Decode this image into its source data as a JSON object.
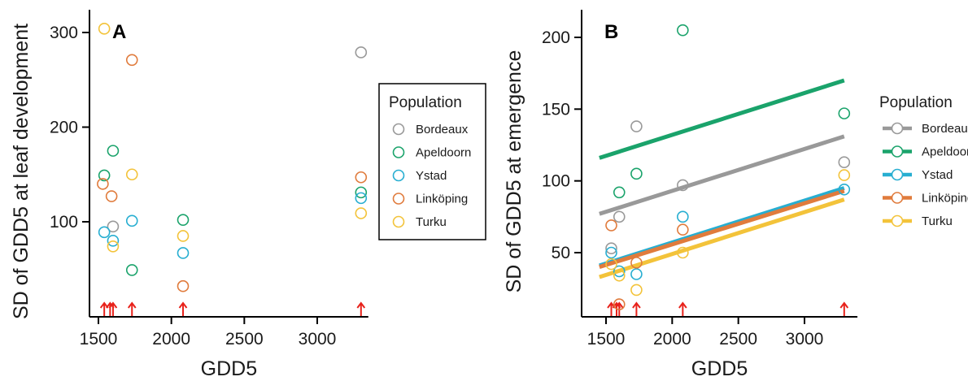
{
  "chart_data": [
    {
      "id": "A",
      "type": "scatter",
      "panel_label": "A",
      "xlabel": "GDD5",
      "ylabel": "SD of GDD5 at leaf development",
      "xlim": [
        1450,
        3350
      ],
      "ylim": [
        20,
        320
      ],
      "xticks": [
        1500,
        2000,
        2500,
        3000
      ],
      "yticks": [
        100,
        200,
        300
      ],
      "arrow_x": [
        1540,
        1580,
        1600,
        1730,
        2080,
        3300
      ],
      "legend": {
        "title": "Population",
        "position": "right",
        "boxed": true
      },
      "series": [
        {
          "name": "Bordeaux",
          "color": "#999999",
          "points": [
            [
              1600,
              95
            ],
            [
              3300,
              279
            ]
          ]
        },
        {
          "name": "Apeldoorn",
          "color": "#1aa36b",
          "points": [
            [
              1540,
              149
            ],
            [
              1600,
              175
            ],
            [
              1730,
              49
            ],
            [
              2080,
              102
            ],
            [
              3300,
              131
            ]
          ]
        },
        {
          "name": "Ystad",
          "color": "#27aed1",
          "points": [
            [
              1540,
              89
            ],
            [
              1600,
              80
            ],
            [
              1730,
              101
            ],
            [
              2080,
              67
            ],
            [
              3300,
              125
            ]
          ]
        },
        {
          "name": "Linköping",
          "color": "#e07b3c",
          "points": [
            [
              1530,
              140
            ],
            [
              1590,
              127
            ],
            [
              1730,
              271
            ],
            [
              2080,
              32
            ],
            [
              3300,
              147
            ]
          ]
        },
        {
          "name": "Turku",
          "color": "#f3c33a",
          "points": [
            [
              1540,
              304
            ],
            [
              1600,
              74
            ],
            [
              1730,
              150
            ],
            [
              2080,
              85
            ],
            [
              3300,
              109
            ]
          ]
        }
      ]
    },
    {
      "id": "B",
      "type": "scatter",
      "panel_label": "B",
      "xlabel": "GDD5",
      "ylabel": "SD of GDD5 at emergence",
      "xlim": [
        1400,
        3400
      ],
      "ylim": [
        0,
        220
      ],
      "xticks": [
        1500,
        2000,
        2500,
        3000
      ],
      "yticks": [
        50,
        100,
        150,
        200
      ],
      "arrow_x": [
        1540,
        1580,
        1600,
        1730,
        2080,
        3300
      ],
      "legend": {
        "title": "Population",
        "position": "right",
        "boxed": false
      },
      "series": [
        {
          "name": "Bordeaux",
          "color": "#999999",
          "points": [
            [
              1540,
              53
            ],
            [
              1600,
              75
            ],
            [
              1730,
              138
            ],
            [
              2080,
              97
            ],
            [
              3300,
              113
            ]
          ],
          "fit": [
            [
              1450,
              77
            ],
            [
              3300,
              131
            ]
          ]
        },
        {
          "name": "Apeldoorn",
          "color": "#1aa36b",
          "points": [
            [
              1600,
              92
            ],
            [
              1730,
              105
            ],
            [
              2080,
              205
            ],
            [
              3300,
              147
            ]
          ],
          "fit": [
            [
              1450,
              116
            ],
            [
              3300,
              170
            ]
          ]
        },
        {
          "name": "Ystad",
          "color": "#27aed1",
          "points": [
            [
              1540,
              50
            ],
            [
              1600,
              37
            ],
            [
              1730,
              35
            ],
            [
              2080,
              75
            ],
            [
              3300,
              94
            ]
          ],
          "fit": [
            [
              1450,
              41
            ],
            [
              3300,
              95
            ]
          ]
        },
        {
          "name": "Linköping",
          "color": "#e07b3c",
          "points": [
            [
              1540,
              69
            ],
            [
              1600,
              14
            ],
            [
              1730,
              43
            ],
            [
              2080,
              66
            ]
          ],
          "fit": [
            [
              1450,
              40
            ],
            [
              3300,
              93
            ]
          ]
        },
        {
          "name": "Turku",
          "color": "#f3c33a",
          "points": [
            [
              1540,
              42
            ],
            [
              1600,
              34
            ],
            [
              1730,
              24
            ],
            [
              2080,
              50
            ],
            [
              3300,
              104
            ]
          ],
          "fit": [
            [
              1450,
              33
            ],
            [
              3300,
              87
            ]
          ]
        }
      ]
    }
  ]
}
